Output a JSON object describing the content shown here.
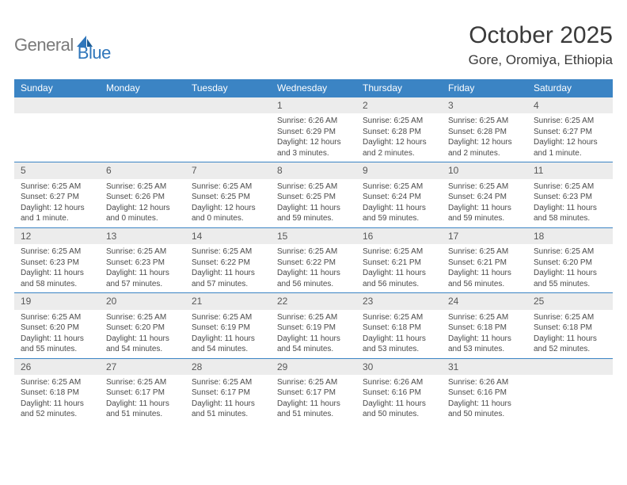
{
  "brand": {
    "general": "General",
    "blue": "Blue"
  },
  "title": "October 2025",
  "location": "Gore, Oromiya, Ethiopia",
  "colors": {
    "header_bg": "#3b84c4",
    "header_text": "#ffffff",
    "daynum_bg": "#ececec",
    "body_text": "#4a4a4a",
    "rule": "#3b84c4",
    "logo_gray": "#7a7a7a",
    "logo_blue": "#2f76bb"
  },
  "day_names": [
    "Sunday",
    "Monday",
    "Tuesday",
    "Wednesday",
    "Thursday",
    "Friday",
    "Saturday"
  ],
  "weeks": [
    [
      {
        "n": "",
        "sunrise": "",
        "sunset": "",
        "daylight": ""
      },
      {
        "n": "",
        "sunrise": "",
        "sunset": "",
        "daylight": ""
      },
      {
        "n": "",
        "sunrise": "",
        "sunset": "",
        "daylight": ""
      },
      {
        "n": "1",
        "sunrise": "Sunrise: 6:26 AM",
        "sunset": "Sunset: 6:29 PM",
        "daylight": "Daylight: 12 hours and 3 minutes."
      },
      {
        "n": "2",
        "sunrise": "Sunrise: 6:25 AM",
        "sunset": "Sunset: 6:28 PM",
        "daylight": "Daylight: 12 hours and 2 minutes."
      },
      {
        "n": "3",
        "sunrise": "Sunrise: 6:25 AM",
        "sunset": "Sunset: 6:28 PM",
        "daylight": "Daylight: 12 hours and 2 minutes."
      },
      {
        "n": "4",
        "sunrise": "Sunrise: 6:25 AM",
        "sunset": "Sunset: 6:27 PM",
        "daylight": "Daylight: 12 hours and 1 minute."
      }
    ],
    [
      {
        "n": "5",
        "sunrise": "Sunrise: 6:25 AM",
        "sunset": "Sunset: 6:27 PM",
        "daylight": "Daylight: 12 hours and 1 minute."
      },
      {
        "n": "6",
        "sunrise": "Sunrise: 6:25 AM",
        "sunset": "Sunset: 6:26 PM",
        "daylight": "Daylight: 12 hours and 0 minutes."
      },
      {
        "n": "7",
        "sunrise": "Sunrise: 6:25 AM",
        "sunset": "Sunset: 6:25 PM",
        "daylight": "Daylight: 12 hours and 0 minutes."
      },
      {
        "n": "8",
        "sunrise": "Sunrise: 6:25 AM",
        "sunset": "Sunset: 6:25 PM",
        "daylight": "Daylight: 11 hours and 59 minutes."
      },
      {
        "n": "9",
        "sunrise": "Sunrise: 6:25 AM",
        "sunset": "Sunset: 6:24 PM",
        "daylight": "Daylight: 11 hours and 59 minutes."
      },
      {
        "n": "10",
        "sunrise": "Sunrise: 6:25 AM",
        "sunset": "Sunset: 6:24 PM",
        "daylight": "Daylight: 11 hours and 59 minutes."
      },
      {
        "n": "11",
        "sunrise": "Sunrise: 6:25 AM",
        "sunset": "Sunset: 6:23 PM",
        "daylight": "Daylight: 11 hours and 58 minutes."
      }
    ],
    [
      {
        "n": "12",
        "sunrise": "Sunrise: 6:25 AM",
        "sunset": "Sunset: 6:23 PM",
        "daylight": "Daylight: 11 hours and 58 minutes."
      },
      {
        "n": "13",
        "sunrise": "Sunrise: 6:25 AM",
        "sunset": "Sunset: 6:23 PM",
        "daylight": "Daylight: 11 hours and 57 minutes."
      },
      {
        "n": "14",
        "sunrise": "Sunrise: 6:25 AM",
        "sunset": "Sunset: 6:22 PM",
        "daylight": "Daylight: 11 hours and 57 minutes."
      },
      {
        "n": "15",
        "sunrise": "Sunrise: 6:25 AM",
        "sunset": "Sunset: 6:22 PM",
        "daylight": "Daylight: 11 hours and 56 minutes."
      },
      {
        "n": "16",
        "sunrise": "Sunrise: 6:25 AM",
        "sunset": "Sunset: 6:21 PM",
        "daylight": "Daylight: 11 hours and 56 minutes."
      },
      {
        "n": "17",
        "sunrise": "Sunrise: 6:25 AM",
        "sunset": "Sunset: 6:21 PM",
        "daylight": "Daylight: 11 hours and 56 minutes."
      },
      {
        "n": "18",
        "sunrise": "Sunrise: 6:25 AM",
        "sunset": "Sunset: 6:20 PM",
        "daylight": "Daylight: 11 hours and 55 minutes."
      }
    ],
    [
      {
        "n": "19",
        "sunrise": "Sunrise: 6:25 AM",
        "sunset": "Sunset: 6:20 PM",
        "daylight": "Daylight: 11 hours and 55 minutes."
      },
      {
        "n": "20",
        "sunrise": "Sunrise: 6:25 AM",
        "sunset": "Sunset: 6:20 PM",
        "daylight": "Daylight: 11 hours and 54 minutes."
      },
      {
        "n": "21",
        "sunrise": "Sunrise: 6:25 AM",
        "sunset": "Sunset: 6:19 PM",
        "daylight": "Daylight: 11 hours and 54 minutes."
      },
      {
        "n": "22",
        "sunrise": "Sunrise: 6:25 AM",
        "sunset": "Sunset: 6:19 PM",
        "daylight": "Daylight: 11 hours and 54 minutes."
      },
      {
        "n": "23",
        "sunrise": "Sunrise: 6:25 AM",
        "sunset": "Sunset: 6:18 PM",
        "daylight": "Daylight: 11 hours and 53 minutes."
      },
      {
        "n": "24",
        "sunrise": "Sunrise: 6:25 AM",
        "sunset": "Sunset: 6:18 PM",
        "daylight": "Daylight: 11 hours and 53 minutes."
      },
      {
        "n": "25",
        "sunrise": "Sunrise: 6:25 AM",
        "sunset": "Sunset: 6:18 PM",
        "daylight": "Daylight: 11 hours and 52 minutes."
      }
    ],
    [
      {
        "n": "26",
        "sunrise": "Sunrise: 6:25 AM",
        "sunset": "Sunset: 6:18 PM",
        "daylight": "Daylight: 11 hours and 52 minutes."
      },
      {
        "n": "27",
        "sunrise": "Sunrise: 6:25 AM",
        "sunset": "Sunset: 6:17 PM",
        "daylight": "Daylight: 11 hours and 51 minutes."
      },
      {
        "n": "28",
        "sunrise": "Sunrise: 6:25 AM",
        "sunset": "Sunset: 6:17 PM",
        "daylight": "Daylight: 11 hours and 51 minutes."
      },
      {
        "n": "29",
        "sunrise": "Sunrise: 6:25 AM",
        "sunset": "Sunset: 6:17 PM",
        "daylight": "Daylight: 11 hours and 51 minutes."
      },
      {
        "n": "30",
        "sunrise": "Sunrise: 6:26 AM",
        "sunset": "Sunset: 6:16 PM",
        "daylight": "Daylight: 11 hours and 50 minutes."
      },
      {
        "n": "31",
        "sunrise": "Sunrise: 6:26 AM",
        "sunset": "Sunset: 6:16 PM",
        "daylight": "Daylight: 11 hours and 50 minutes."
      },
      {
        "n": "",
        "sunrise": "",
        "sunset": "",
        "daylight": ""
      }
    ]
  ]
}
